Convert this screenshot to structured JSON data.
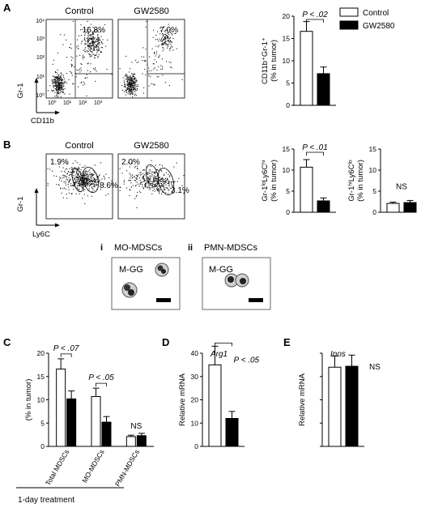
{
  "panel_letters": [
    "A",
    "B",
    "C",
    "D",
    "E"
  ],
  "legend": {
    "items": [
      {
        "label": "Control",
        "fill": "#ffffff"
      },
      {
        "label": "GW2580",
        "fill": "#000000"
      }
    ]
  },
  "facs": {
    "a": {
      "titles": [
        "Control",
        "GW2580"
      ],
      "percents": [
        "16.8%",
        "7.0%"
      ],
      "y_axis": "Gr-1",
      "x_axis": "CD11b"
    },
    "b": {
      "titles": [
        "Control",
        "GW2580"
      ],
      "percents_left": [
        "1.9%",
        "2.0%"
      ],
      "percents_right": [
        "8.6%",
        "3.1%"
      ],
      "y_axis": "Gr-1",
      "x_axis": "Ly6C"
    },
    "axis_ticks": [
      "10⁰",
      "10¹",
      "10²",
      "10³",
      "10⁴"
    ]
  },
  "cells": {
    "i": {
      "numeral": "i",
      "title": "MO-MDSCs",
      "label": "M-GG"
    },
    "ii": {
      "numeral": "ii",
      "title": "PMN-MDSCs",
      "label": "M-GG"
    }
  },
  "chart_data": [
    {
      "panel": "A",
      "type": "bar",
      "categories": [
        "Control",
        "GW2580"
      ],
      "values": [
        16.6,
        7.1
      ],
      "errors": [
        2.2,
        1.5
      ],
      "ylim": [
        0,
        20
      ],
      "yticks": [
        0,
        5,
        10,
        15,
        20
      ],
      "ylabel_lines": [
        "CD11b⁺Gr-1⁺",
        "(% in tumor)"
      ],
      "annotation": "P < .02"
    },
    {
      "panel": "B1",
      "type": "bar",
      "categories": [
        "Control",
        "GW2580"
      ],
      "values": [
        10.7,
        2.7
      ],
      "errors": [
        1.8,
        0.7
      ],
      "ylim": [
        0,
        15
      ],
      "yticks": [
        0,
        5,
        10,
        15
      ],
      "ylabel_lines": [
        "Gr-1ˡᵒLy6Cʰⁱ",
        "(% in tumor)"
      ],
      "annotation": "P < .01"
    },
    {
      "panel": "B2",
      "type": "bar",
      "categories": [
        "Control",
        "GW2580"
      ],
      "values": [
        2.1,
        2.3
      ],
      "errors": [
        0.3,
        0.5
      ],
      "ylim": [
        0,
        15
      ],
      "yticks": [
        0,
        5,
        10,
        15
      ],
      "ylabel_lines": [
        "Gr-1ʰⁱLy6Cˡᵒ",
        "(% in tumor)"
      ],
      "annotation": "NS"
    },
    {
      "panel": "C",
      "type": "bar",
      "categories": [
        "Total MDSCs",
        "MO-MDSCs",
        "PMN-MDSCs"
      ],
      "series": [
        {
          "name": "Control",
          "values": [
            16.6,
            10.7,
            2.1
          ],
          "errors": [
            2.2,
            1.8,
            0.3
          ]
        },
        {
          "name": "GW2580",
          "values": [
            10.2,
            5.2,
            2.3
          ],
          "errors": [
            1.7,
            1.2,
            0.5
          ]
        }
      ],
      "ylim": [
        0,
        20
      ],
      "yticks": [
        0,
        5,
        10,
        15,
        20
      ],
      "ylabel": "(% in tumor)",
      "annotations": [
        "P < .07",
        "P < .05",
        "NS"
      ],
      "xgroup_label": "1-day treatment"
    },
    {
      "panel": "D",
      "type": "bar",
      "categories": [
        "Control",
        "GW2580"
      ],
      "values": [
        35.0,
        12.0
      ],
      "errors": [
        8.0,
        3.0
      ],
      "ylim": [
        0,
        40
      ],
      "yticks": [
        0,
        10,
        20,
        30,
        40
      ],
      "ylabel": "Relative mRNA",
      "gene": "Arg1",
      "annotation": "P < .05"
    },
    {
      "panel": "E",
      "type": "bar",
      "categories": [
        "Control",
        "GW2580"
      ],
      "values": [
        0.85,
        0.86
      ],
      "errors": [
        0.12,
        0.12
      ],
      "ylim": [
        0,
        1.0
      ],
      "yticks": [],
      "ylabel": "Relative mRNA",
      "gene": "Inos",
      "annotation": "NS"
    }
  ]
}
